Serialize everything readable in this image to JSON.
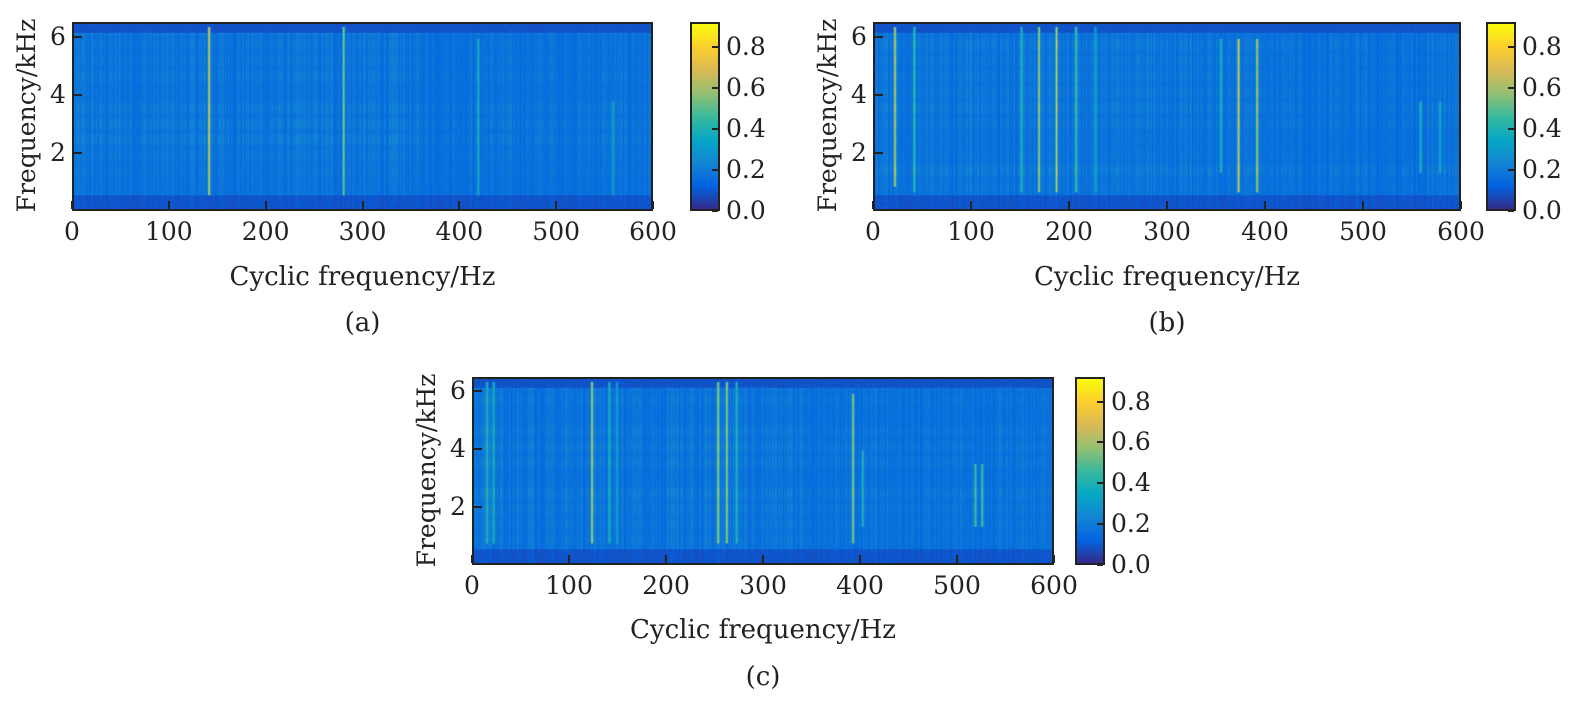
{
  "chart_data": [
    {
      "type": "heatmap",
      "caption": "(a)",
      "xlabel": "Cyclic frequency/Hz",
      "ylabel": "Frequency/kHz",
      "xlim": [
        0,
        600
      ],
      "ylim": [
        0,
        6.5
      ],
      "xticks": [
        "0",
        "100",
        "200",
        "300",
        "400",
        "500",
        "600"
      ],
      "yticks": [
        "2",
        "4",
        "6"
      ],
      "colorbar": {
        "range": [
          0,
          0.92
        ],
        "ticks": [
          "0.0",
          "0.2",
          "0.4",
          "0.6",
          "0.8"
        ],
        "colormap": "parula"
      },
      "peaks": [
        {
          "cyclic_hz": 140,
          "value": 0.85,
          "f_range_khz": [
            0.5,
            6.4
          ]
        },
        {
          "cyclic_hz": 280,
          "value": 0.7,
          "f_range_khz": [
            0.5,
            6.4
          ]
        },
        {
          "cyclic_hz": 420,
          "value": 0.45,
          "f_range_khz": [
            0.5,
            6.0
          ]
        },
        {
          "cyclic_hz": 560,
          "value": 0.4,
          "f_range_khz": [
            0.5,
            3.8
          ]
        }
      ]
    },
    {
      "type": "heatmap",
      "caption": "(b)",
      "xlabel": "Cyclic frequency/Hz",
      "ylabel": "Frequency/kHz",
      "xlim": [
        0,
        600
      ],
      "ylim": [
        0,
        6.5
      ],
      "xticks": [
        "0",
        "100",
        "200",
        "300",
        "400",
        "500",
        "600"
      ],
      "yticks": [
        "2",
        "4",
        "6"
      ],
      "colorbar": {
        "range": [
          0,
          0.92
        ],
        "ticks": [
          "0.0",
          "0.2",
          "0.4",
          "0.6",
          "0.8"
        ],
        "colormap": "parula"
      },
      "peaks": [
        {
          "cyclic_hz": 20,
          "value": 0.8,
          "f_range_khz": [
            0.8,
            6.4
          ]
        },
        {
          "cyclic_hz": 40,
          "value": 0.55,
          "f_range_khz": [
            0.6,
            6.4
          ]
        },
        {
          "cyclic_hz": 150,
          "value": 0.5,
          "f_range_khz": [
            0.6,
            6.4
          ]
        },
        {
          "cyclic_hz": 168,
          "value": 0.75,
          "f_range_khz": [
            0.6,
            6.4
          ]
        },
        {
          "cyclic_hz": 186,
          "value": 0.8,
          "f_range_khz": [
            0.6,
            6.4
          ]
        },
        {
          "cyclic_hz": 206,
          "value": 0.6,
          "f_range_khz": [
            0.6,
            6.4
          ]
        },
        {
          "cyclic_hz": 226,
          "value": 0.4,
          "f_range_khz": [
            0.6,
            6.4
          ]
        },
        {
          "cyclic_hz": 355,
          "value": 0.5,
          "f_range_khz": [
            1.3,
            6.0
          ]
        },
        {
          "cyclic_hz": 373,
          "value": 0.85,
          "f_range_khz": [
            0.6,
            6.0
          ]
        },
        {
          "cyclic_hz": 392,
          "value": 0.8,
          "f_range_khz": [
            0.6,
            6.0
          ]
        },
        {
          "cyclic_hz": 560,
          "value": 0.5,
          "f_range_khz": [
            1.3,
            3.8
          ]
        },
        {
          "cyclic_hz": 580,
          "value": 0.45,
          "f_range_khz": [
            1.3,
            3.8
          ]
        }
      ]
    },
    {
      "type": "heatmap",
      "caption": "(c)",
      "xlabel": "Cyclic frequency/Hz",
      "ylabel": "Frequency/kHz",
      "xlim": [
        0,
        600
      ],
      "ylim": [
        0,
        6.5
      ],
      "xticks": [
        "0",
        "100",
        "200",
        "300",
        "400",
        "500",
        "600"
      ],
      "yticks": [
        "2",
        "4",
        "6"
      ],
      "colorbar": {
        "range": [
          0,
          0.92
        ],
        "ticks": [
          "0.0",
          "0.2",
          "0.4",
          "0.6",
          "0.8"
        ],
        "colormap": "parula"
      },
      "peaks": [
        {
          "cyclic_hz": 13,
          "value": 0.5,
          "f_range_khz": [
            0.7,
            6.4
          ]
        },
        {
          "cyclic_hz": 20,
          "value": 0.5,
          "f_range_khz": [
            0.7,
            6.4
          ]
        },
        {
          "cyclic_hz": 122,
          "value": 0.8,
          "f_range_khz": [
            0.7,
            6.4
          ]
        },
        {
          "cyclic_hz": 140,
          "value": 0.5,
          "f_range_khz": [
            0.7,
            6.4
          ]
        },
        {
          "cyclic_hz": 148,
          "value": 0.4,
          "f_range_khz": [
            0.7,
            6.4
          ]
        },
        {
          "cyclic_hz": 253,
          "value": 0.75,
          "f_range_khz": [
            0.7,
            6.4
          ]
        },
        {
          "cyclic_hz": 262,
          "value": 0.8,
          "f_range_khz": [
            0.7,
            6.4
          ]
        },
        {
          "cyclic_hz": 272,
          "value": 0.5,
          "f_range_khz": [
            0.7,
            6.4
          ]
        },
        {
          "cyclic_hz": 393,
          "value": 0.75,
          "f_range_khz": [
            0.7,
            6.0
          ]
        },
        {
          "cyclic_hz": 403,
          "value": 0.5,
          "f_range_khz": [
            1.3,
            4.0
          ]
        },
        {
          "cyclic_hz": 520,
          "value": 0.6,
          "f_range_khz": [
            1.3,
            3.5
          ]
        },
        {
          "cyclic_hz": 527,
          "value": 0.6,
          "f_range_khz": [
            1.3,
            3.5
          ]
        }
      ]
    }
  ]
}
